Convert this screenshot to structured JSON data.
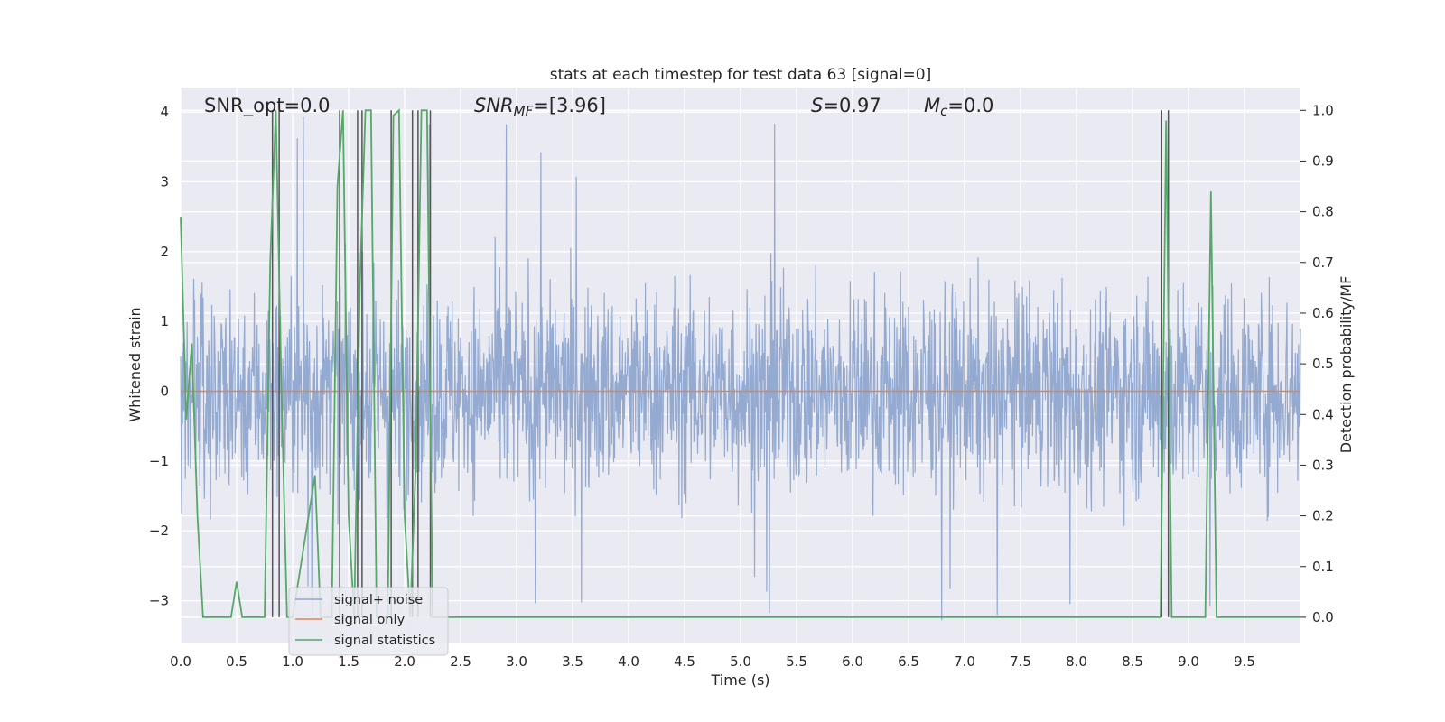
{
  "chart_data": {
    "type": "line",
    "title": "stats at each timestep for test data 63 [signal=0]",
    "xlabel": "Time (s)",
    "ylabel_left": "Whitened strain",
    "ylabel_right": "Detection probability/MF",
    "xlim": [
      0,
      10
    ],
    "ylim_left": [
      -3.6,
      4.35
    ],
    "ylim_right": [
      -0.05,
      1.045
    ],
    "x_ticks": [
      "0.0",
      "0.5",
      "1.0",
      "1.5",
      "2.0",
      "2.5",
      "3.0",
      "3.5",
      "4.0",
      "4.5",
      "5.0",
      "5.5",
      "6.0",
      "6.5",
      "7.0",
      "7.5",
      "8.0",
      "8.5",
      "9.0",
      "9.5"
    ],
    "y_left_ticks": [
      "4",
      "3",
      "2",
      "1",
      "0",
      "−1",
      "−2",
      "−3"
    ],
    "y_left_tick_values": [
      4,
      3,
      2,
      1,
      0,
      -1,
      -2,
      -3
    ],
    "y_right_ticks": [
      "1.0",
      "0.9",
      "0.8",
      "0.7",
      "0.6",
      "0.5",
      "0.4",
      "0.3",
      "0.2",
      "0.1",
      "0.0"
    ],
    "y_right_tick_values": [
      1.0,
      0.9,
      0.8,
      0.7,
      0.6,
      0.5,
      0.4,
      0.3,
      0.2,
      0.1,
      0.0
    ],
    "grid": true,
    "legend_placement": "lower-left",
    "annotations": {
      "snr_opt": "SNR_opt=0.0",
      "snr_mf_prefix": "SNR",
      "snr_mf_sub": "MF",
      "snr_mf_value": "=[3.96]",
      "s_label": "S",
      "s_value": "=0.97",
      "mc_label": "M",
      "mc_sub": "c",
      "mc_value": "=0.0"
    },
    "series": [
      {
        "name": "signal+ noise",
        "axis": "left",
        "color": "#8fa6cf",
        "style": "noise",
        "envelope": {
          "typical_min": -1.9,
          "typical_max": 1.9,
          "max": 4.0,
          "min": -3.3
        }
      },
      {
        "name": "signal only",
        "axis": "left",
        "color": "#dd8452",
        "x": [
          0,
          10
        ],
        "y": [
          0,
          0
        ]
      },
      {
        "name": "signal statistics",
        "axis": "right",
        "color": "#55a868",
        "x": [
          0.0,
          0.05,
          0.1,
          0.15,
          0.2,
          0.45,
          0.5,
          0.55,
          0.75,
          0.8,
          0.85,
          0.9,
          0.95,
          1.0,
          1.2,
          1.25,
          1.35,
          1.4,
          1.45,
          1.5,
          1.55,
          1.6,
          1.65,
          1.7,
          1.75,
          1.8,
          1.85,
          1.9,
          1.95,
          2.0,
          2.05,
          2.1,
          2.15,
          2.2,
          2.25,
          2.3,
          2.35,
          8.7,
          8.75,
          8.8,
          8.85,
          8.95,
          9.0,
          9.05,
          9.1,
          9.15,
          9.2,
          9.25,
          9.3,
          9.35,
          10.0
        ],
        "y": [
          0.79,
          0.39,
          0.54,
          0.2,
          0.0,
          0.0,
          0.07,
          0.0,
          0.0,
          0.7,
          1.0,
          0.45,
          0.0,
          0.0,
          0.28,
          0.0,
          0.0,
          0.85,
          1.0,
          0.2,
          0.0,
          0.65,
          1.0,
          1.0,
          0.0,
          0.0,
          0.0,
          0.99,
          1.0,
          0.2,
          0.0,
          0.3,
          1.0,
          1.0,
          0.0,
          0.0,
          0.0,
          0.0,
          0.0,
          0.98,
          0.0,
          0.0,
          0.0,
          0.0,
          0.0,
          0.0,
          0.84,
          0.0,
          0.0,
          0.0,
          0.0
        ]
      }
    ],
    "vertical_lines": {
      "color": "#555555",
      "x": [
        0.82,
        0.88,
        1.42,
        1.58,
        1.62,
        1.88,
        2.07,
        2.12,
        2.23,
        8.76,
        8.82
      ]
    }
  }
}
